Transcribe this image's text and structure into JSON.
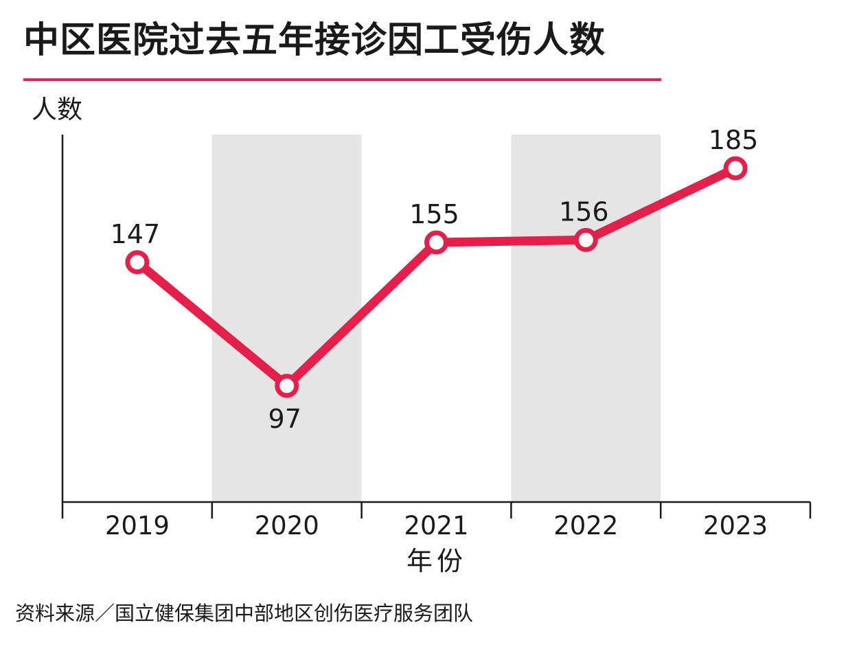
{
  "title": "中区医院过去五年接诊因工受伤人数",
  "source": "资料来源／国立健保集团中部地区创伤医疗服务团队",
  "colors": {
    "line": "#e41f4a",
    "title_rule": "#e0245a",
    "band": "#e5e5e5",
    "axis": "#1a1a1a"
  },
  "chart_data": {
    "type": "line",
    "categories": [
      "2019",
      "2020",
      "2021",
      "2022",
      "2023"
    ],
    "values": [
      147,
      97,
      155,
      156,
      185
    ],
    "data_labels": [
      "147",
      "97",
      "155",
      "156",
      "185"
    ],
    "xlabel": "年份",
    "ylabel": "人数",
    "ylim": [
      0,
      200
    ],
    "grid": false,
    "shaded_bands": [
      "2020",
      "2022"
    ]
  }
}
